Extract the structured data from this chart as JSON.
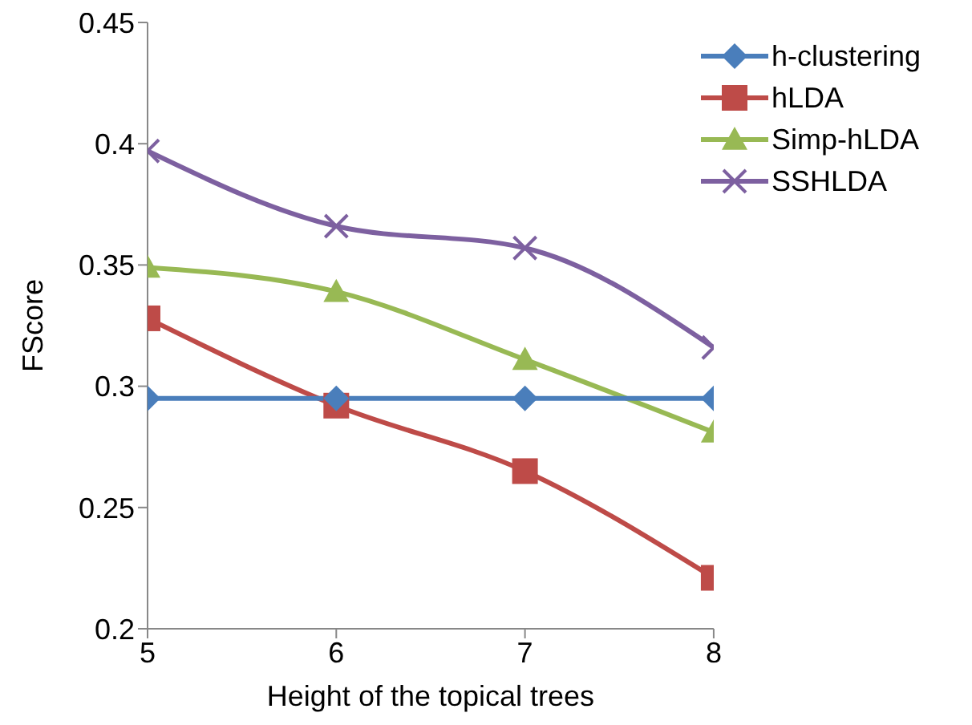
{
  "chart_data": {
    "type": "line",
    "xlabel": "Height of the topical trees",
    "ylabel": "FScore",
    "x": [
      5,
      6,
      7,
      8
    ],
    "xlim": [
      5,
      8
    ],
    "xticks": [
      5,
      6,
      7,
      8
    ],
    "ylim": [
      0.2,
      0.45
    ],
    "yticks": [
      0.2,
      0.25,
      0.3,
      0.35,
      0.4,
      0.45
    ],
    "grid": false,
    "legend": "top right",
    "series": [
      {
        "name": "h-clustering",
        "color": "#4a7ebb",
        "marker": "diamond",
        "values": [
          0.295,
          0.295,
          0.295,
          0.295
        ]
      },
      {
        "name": "hLDA",
        "color": "#be4b48",
        "marker": "square",
        "values": [
          0.328,
          0.292,
          0.265,
          0.221
        ]
      },
      {
        "name": "Simp-hLDA",
        "color": "#98b954",
        "marker": "triangle",
        "values": [
          0.349,
          0.339,
          0.311,
          0.281
        ]
      },
      {
        "name": "SSHLDA",
        "color": "#7d60a0",
        "marker": "cross",
        "values": [
          0.397,
          0.366,
          0.357,
          0.316
        ]
      }
    ]
  }
}
